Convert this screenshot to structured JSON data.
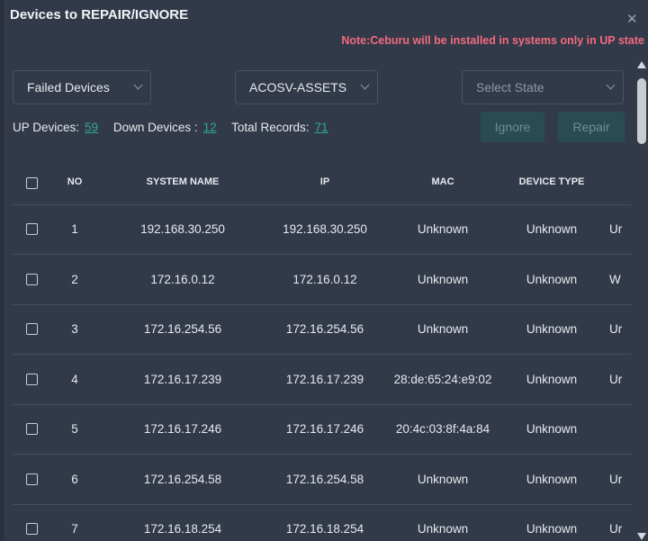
{
  "dialog": {
    "title": "Devices to REPAIR/IGNORE",
    "note": "Note:Ceburu will be installed in systems only in UP state"
  },
  "filters": {
    "device_filter": "Failed Devices",
    "asset_group": "ACOSV-ASSETS",
    "state_placeholder": "Select State"
  },
  "counts": {
    "up_label": "UP Devices:",
    "up_value": "59",
    "down_label": "Down Devices :",
    "down_value": "12",
    "total_label": "Total Records:",
    "total_value": "71"
  },
  "actions": {
    "ignore_label": "Ignore",
    "repair_label": "Repair"
  },
  "table": {
    "headers": [
      "NO",
      "SYSTEM NAME",
      "IP",
      "MAC",
      "DEVICE TYPE"
    ],
    "rows": [
      {
        "no": "1",
        "system_name": "192.168.30.250",
        "ip": "192.168.30.250",
        "mac": "Unknown",
        "device_type": "Unknown",
        "extra": "Ur"
      },
      {
        "no": "2",
        "system_name": "172.16.0.12",
        "ip": "172.16.0.12",
        "mac": "Unknown",
        "device_type": "Unknown",
        "extra": "W"
      },
      {
        "no": "3",
        "system_name": "172.16.254.56",
        "ip": "172.16.254.56",
        "mac": "Unknown",
        "device_type": "Unknown",
        "extra": "Ur"
      },
      {
        "no": "4",
        "system_name": "172.16.17.239",
        "ip": "172.16.17.239",
        "mac": "28:de:65:24:e9:02",
        "device_type": "Unknown",
        "extra": "Ur"
      },
      {
        "no": "5",
        "system_name": "172.16.17.246",
        "ip": "172.16.17.246",
        "mac": "20:4c:03:8f:4a:84",
        "device_type": "Unknown",
        "extra": ""
      },
      {
        "no": "6",
        "system_name": "172.16.254.58",
        "ip": "172.16.254.58",
        "mac": "Unknown",
        "device_type": "Unknown",
        "extra": "Ur"
      },
      {
        "no": "7",
        "system_name": "172.16.18.254",
        "ip": "172.16.18.254",
        "mac": "Unknown",
        "device_type": "Unknown",
        "extra": "Ur"
      }
    ]
  }
}
